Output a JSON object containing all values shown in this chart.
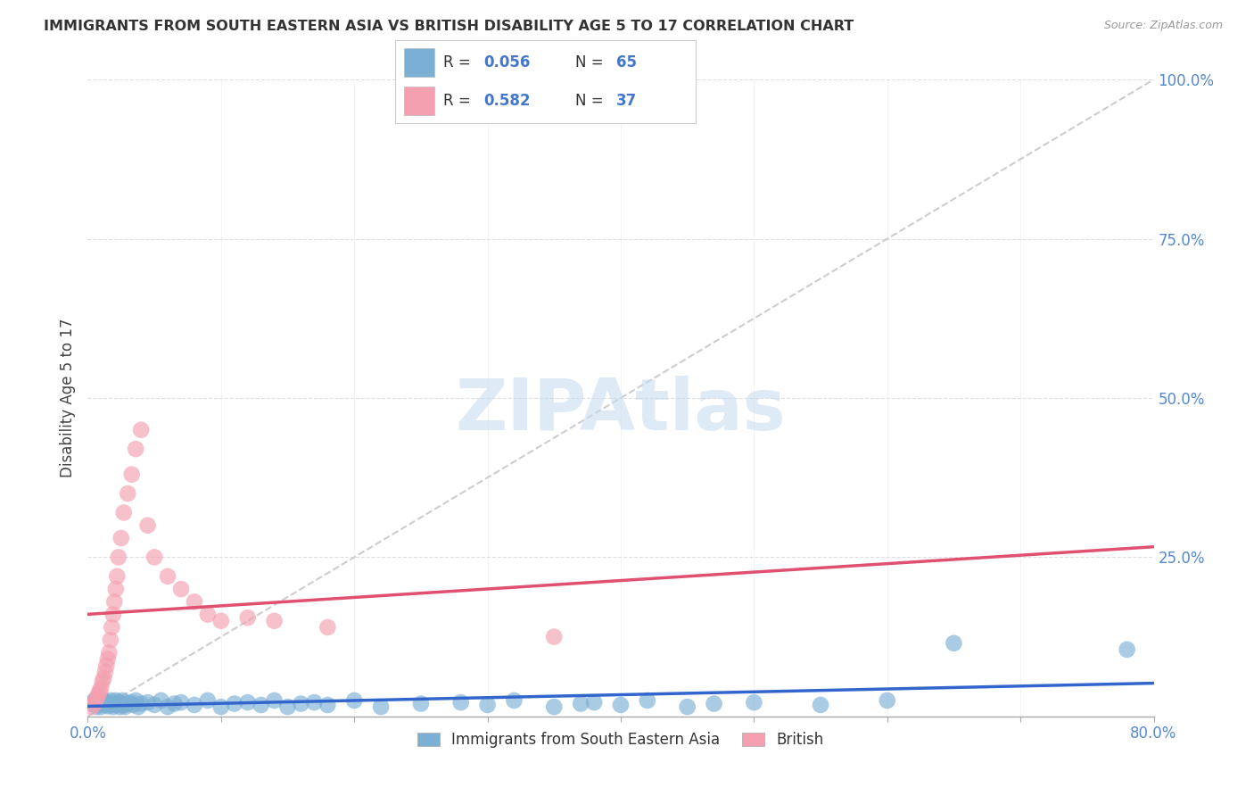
{
  "title": "IMMIGRANTS FROM SOUTH EASTERN ASIA VS BRITISH DISABILITY AGE 5 TO 17 CORRELATION CHART",
  "source": "Source: ZipAtlas.com",
  "ylabel": "Disability Age 5 to 17",
  "xlim": [
    0.0,
    0.8
  ],
  "ylim": [
    0.0,
    1.0
  ],
  "xtick_positions": [
    0.0,
    0.1,
    0.2,
    0.3,
    0.4,
    0.5,
    0.6,
    0.7,
    0.8
  ],
  "xtick_labels_show": [
    "0.0%",
    "",
    "",
    "",
    "",
    "",
    "",
    "",
    "80.0%"
  ],
  "ytick_positions": [
    0.0,
    0.25,
    0.5,
    0.75,
    1.0
  ],
  "ytick_labels": [
    "",
    "25.0%",
    "50.0%",
    "75.0%",
    "100.0%"
  ],
  "blue_color": "#7BAFD4",
  "pink_color": "#F4A0B0",
  "blue_line_color": "#3366CC",
  "pink_line_color": "#E05070",
  "ref_line_color": "#C8C8C8",
  "grid_color": "#DEDEDE",
  "watermark": "ZIPAtlas",
  "watermark_color": "#C8DCF0",
  "legend_label_blue": "Immigrants from South Eastern Asia",
  "legend_label_pink": "British",
  "blue_scatter_x": [
    0.003,
    0.005,
    0.007,
    0.008,
    0.009,
    0.01,
    0.011,
    0.012,
    0.013,
    0.014,
    0.015,
    0.016,
    0.017,
    0.018,
    0.019,
    0.02,
    0.021,
    0.022,
    0.023,
    0.024,
    0.025,
    0.026,
    0.027,
    0.028,
    0.03,
    0.032,
    0.034,
    0.036,
    0.038,
    0.04,
    0.045,
    0.05,
    0.055,
    0.06,
    0.065,
    0.07,
    0.08,
    0.09,
    0.1,
    0.11,
    0.12,
    0.13,
    0.14,
    0.15,
    0.16,
    0.17,
    0.18,
    0.2,
    0.22,
    0.25,
    0.28,
    0.3,
    0.32,
    0.35,
    0.37,
    0.38,
    0.4,
    0.42,
    0.45,
    0.47,
    0.5,
    0.55,
    0.6,
    0.65,
    0.78
  ],
  "blue_scatter_y": [
    0.02,
    0.025,
    0.015,
    0.02,
    0.025,
    0.015,
    0.02,
    0.025,
    0.018,
    0.022,
    0.016,
    0.02,
    0.025,
    0.018,
    0.015,
    0.02,
    0.025,
    0.018,
    0.022,
    0.015,
    0.02,
    0.025,
    0.018,
    0.015,
    0.02,
    0.022,
    0.018,
    0.025,
    0.015,
    0.02,
    0.022,
    0.018,
    0.025,
    0.015,
    0.02,
    0.022,
    0.018,
    0.025,
    0.015,
    0.02,
    0.022,
    0.018,
    0.025,
    0.015,
    0.02,
    0.022,
    0.018,
    0.025,
    0.015,
    0.02,
    0.022,
    0.018,
    0.025,
    0.015,
    0.02,
    0.022,
    0.018,
    0.025,
    0.015,
    0.02,
    0.022,
    0.018,
    0.025,
    0.115,
    0.105
  ],
  "pink_scatter_x": [
    0.003,
    0.005,
    0.006,
    0.007,
    0.008,
    0.009,
    0.01,
    0.011,
    0.012,
    0.013,
    0.014,
    0.015,
    0.016,
    0.017,
    0.018,
    0.019,
    0.02,
    0.021,
    0.022,
    0.023,
    0.025,
    0.027,
    0.03,
    0.033,
    0.036,
    0.04,
    0.045,
    0.05,
    0.06,
    0.07,
    0.08,
    0.09,
    0.1,
    0.12,
    0.14,
    0.18,
    0.35
  ],
  "pink_scatter_y": [
    0.015,
    0.02,
    0.025,
    0.03,
    0.035,
    0.04,
    0.045,
    0.055,
    0.06,
    0.07,
    0.08,
    0.09,
    0.1,
    0.12,
    0.14,
    0.16,
    0.18,
    0.2,
    0.22,
    0.25,
    0.28,
    0.32,
    0.35,
    0.38,
    0.42,
    0.45,
    0.3,
    0.25,
    0.22,
    0.2,
    0.18,
    0.16,
    0.15,
    0.155,
    0.15,
    0.14,
    0.125
  ]
}
